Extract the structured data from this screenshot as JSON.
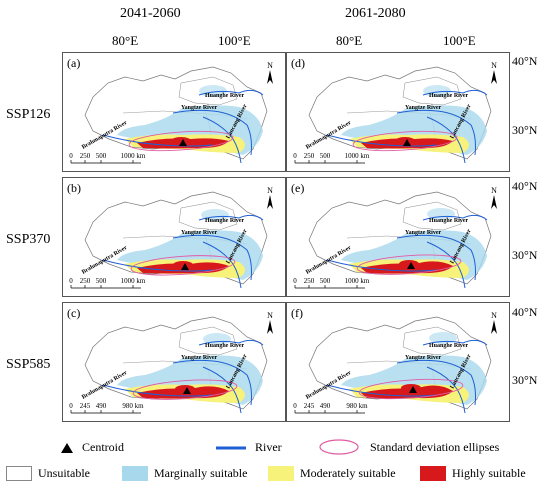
{
  "header": {
    "periods": [
      "2041-2060",
      "2061-2080"
    ],
    "longitude_ticks": [
      "80°E",
      "100°E"
    ],
    "latitude_ticks": [
      "40°N",
      "30°N"
    ]
  },
  "scenarios": [
    "SSP126",
    "SSP370",
    "SSP585"
  ],
  "panels": [
    {
      "label": "(a)",
      "scale": [
        "0",
        "250",
        "500",
        "1000 km"
      ]
    },
    {
      "label": "(d)",
      "scale": [
        "0",
        "250",
        "500",
        "1000 km"
      ]
    },
    {
      "label": "(b)",
      "scale": [
        "0",
        "250",
        "500",
        "1000 km"
      ]
    },
    {
      "label": "(e)",
      "scale": [
        "0",
        "250",
        "500",
        "1000 km"
      ]
    },
    {
      "label": "(c)",
      "scale": [
        "0",
        "245",
        "490",
        "980 km"
      ]
    },
    {
      "label": "(f)",
      "scale": [
        "0",
        "245",
        "490",
        "980 km"
      ]
    }
  ],
  "map_labels": {
    "north": "N",
    "rivers": [
      "Huanghe River",
      "Yangtze River",
      "Lancang River",
      "Brahmaputra River"
    ]
  },
  "legend": {
    "row1": [
      "Centroid",
      "River",
      "Standard deviation ellipses"
    ],
    "row2": [
      "Unsuitable",
      "Marginally suitable",
      "Moderately suitable",
      "Highly suitable"
    ]
  },
  "colors": {
    "unsuitable": "#ffffff",
    "marginal": "#a8d8ec",
    "moderate": "#f6f27a",
    "high": "#d7191c",
    "river": "#1f5fd6",
    "ellipse": "#e05aa0"
  }
}
